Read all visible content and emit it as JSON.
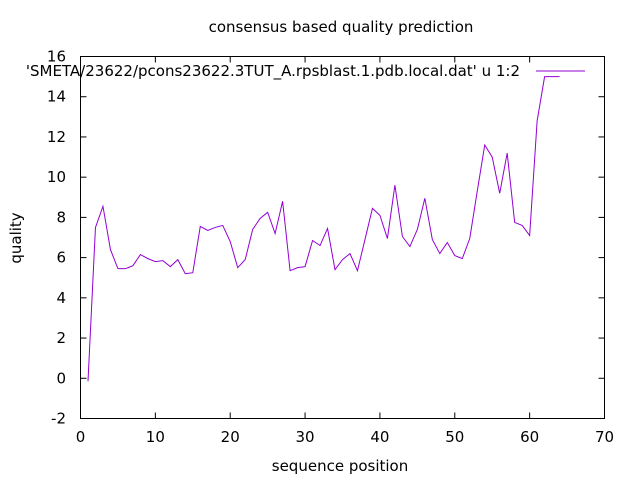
{
  "chart_data": {
    "type": "line",
    "title": "consensus based quality prediction",
    "xlabel": "sequence position",
    "ylabel": "quality",
    "xlim": [
      0,
      70
    ],
    "ylim": [
      -2,
      16
    ],
    "xticks": [
      0,
      10,
      20,
      30,
      40,
      50,
      60,
      70
    ],
    "yticks": [
      -2,
      0,
      2,
      4,
      6,
      8,
      10,
      12,
      14,
      16
    ],
    "grid": false,
    "legend_position": "top-right",
    "series": [
      {
        "name": "'SMETA/23622/pcons23622.3TUT_A.rpsblast.1.pdb.local.dat' u 1:2",
        "color": "#9400d3",
        "x": [
          1,
          2,
          3,
          4,
          5,
          6,
          7,
          8,
          9,
          10,
          11,
          12,
          13,
          14,
          15,
          16,
          17,
          18,
          19,
          20,
          21,
          22,
          23,
          24,
          25,
          26,
          27,
          28,
          29,
          30,
          31,
          32,
          33,
          34,
          35,
          36,
          37,
          38,
          39,
          40,
          41,
          42,
          43,
          44,
          45,
          46,
          47,
          48,
          49,
          50,
          51,
          52,
          53,
          54,
          55,
          56,
          57,
          58,
          59,
          60,
          61,
          62,
          63,
          64
        ],
        "y": [
          -0.15,
          7.5,
          8.55,
          6.4,
          5.45,
          5.45,
          5.6,
          6.15,
          5.95,
          5.8,
          5.85,
          5.55,
          5.9,
          5.2,
          5.25,
          7.55,
          7.35,
          7.5,
          7.6,
          6.8,
          5.5,
          5.9,
          7.4,
          7.95,
          8.25,
          7.2,
          8.8,
          5.35,
          5.5,
          5.55,
          6.85,
          6.6,
          7.45,
          5.4,
          5.9,
          6.2,
          5.35,
          6.9,
          8.45,
          8.1,
          6.95,
          9.6,
          7.05,
          6.55,
          7.4,
          8.95,
          6.9,
          6.2,
          6.75,
          6.1,
          5.95,
          6.95,
          9.3,
          11.6,
          11.0,
          9.2,
          11.2,
          7.75,
          7.6,
          7.1,
          12.8,
          15.0,
          15.0,
          15.0
        ]
      }
    ]
  }
}
